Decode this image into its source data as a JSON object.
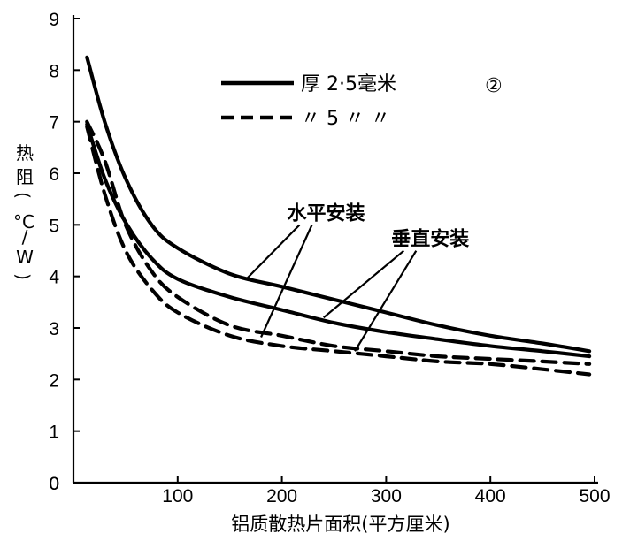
{
  "chart_data": {
    "type": "line",
    "title": "",
    "xlabel": "铝质散热片面积(平方厘米)",
    "ylabel_chars": [
      "热",
      "阻",
      "(",
      "°C",
      "/",
      "W",
      ")"
    ],
    "xlim": [
      0,
      500
    ],
    "ylim": [
      0,
      9
    ],
    "x_ticks": [
      100,
      200,
      300,
      400,
      500
    ],
    "x_tick_labels": [
      "100",
      "200",
      "300",
      "400",
      "500"
    ],
    "y_ticks": [
      0,
      1,
      2,
      3,
      4,
      5,
      6,
      7,
      8,
      9
    ],
    "y_tick_labels": [
      "0",
      "1",
      "2",
      "3",
      "4",
      "5",
      "6",
      "7",
      "8",
      "9"
    ],
    "series": [
      {
        "name": "厚2.5毫米 水平安装",
        "style": "solid",
        "x": [
          13,
          30,
          50,
          75,
          100,
          150,
          200,
          250,
          300,
          350,
          400,
          450,
          495
        ],
        "y": [
          8.25,
          7.0,
          5.9,
          5.0,
          4.55,
          4.05,
          3.8,
          3.55,
          3.3,
          3.05,
          2.85,
          2.7,
          2.55
        ]
      },
      {
        "name": "厚2.5毫米 垂直安装",
        "style": "solid",
        "x": [
          13,
          30,
          50,
          75,
          100,
          150,
          200,
          250,
          300,
          350,
          400,
          450,
          495
        ],
        "y": [
          6.95,
          5.9,
          5.05,
          4.35,
          3.95,
          3.6,
          3.35,
          3.1,
          2.92,
          2.78,
          2.65,
          2.55,
          2.45
        ]
      },
      {
        "name": "厚5毫米 水平安装",
        "style": "dashed",
        "x": [
          13,
          30,
          50,
          75,
          100,
          150,
          200,
          250,
          300,
          350,
          400,
          450,
          495
        ],
        "y": [
          7.0,
          6.25,
          5.0,
          4.1,
          3.6,
          3.05,
          2.85,
          2.65,
          2.55,
          2.45,
          2.4,
          2.35,
          2.3
        ]
      },
      {
        "name": "厚5毫米 垂直安装",
        "style": "dashed",
        "x": [
          13,
          30,
          50,
          75,
          100,
          150,
          200,
          250,
          300,
          350,
          400,
          450,
          495
        ],
        "y": [
          6.9,
          5.6,
          4.5,
          3.75,
          3.3,
          2.85,
          2.65,
          2.55,
          2.45,
          2.35,
          2.3,
          2.2,
          2.1
        ]
      }
    ],
    "legend": {
      "placement": "top-right",
      "entries": [
        {
          "style": "solid",
          "label": "厚 2·5毫米"
        },
        {
          "style": "dashed",
          "label": "〃  5 〃 〃"
        }
      ],
      "figure_mark": "②"
    },
    "annotations": [
      {
        "text": "水平安装",
        "x": 205,
        "y": 5.1,
        "arrow_targets": [
          [
            165,
            3.93
          ],
          [
            180,
            2.82
          ]
        ]
      },
      {
        "text": "垂直安装",
        "x": 305,
        "y": 4.6,
        "arrow_targets": [
          [
            240,
            3.2
          ],
          [
            270,
            2.55
          ]
        ]
      }
    ]
  }
}
